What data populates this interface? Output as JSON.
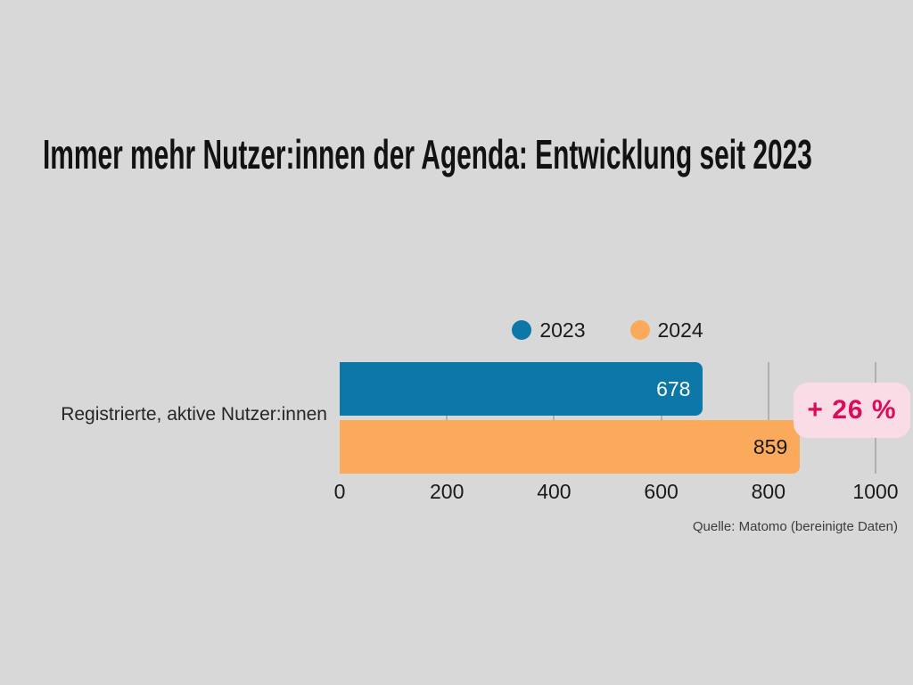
{
  "canvas": {
    "background": "#d8d8d8"
  },
  "title": "Immer mehr Nutzer:innen der Agenda: Entwicklung seit 2023",
  "source": "Quelle: Matomo (bereinigte Daten)",
  "chart_data": {
    "type": "bar",
    "orientation": "horizontal",
    "title": "Immer mehr Nutzer:innen der Agenda: Entwicklung seit 2023",
    "categories": [
      "Registrierte, aktive Nutzer:innen"
    ],
    "series": [
      {
        "name": "2023",
        "values": [
          678
        ],
        "color": "#0d78a8",
        "label_color": "#ffffff"
      },
      {
        "name": "2024",
        "values": [
          859
        ],
        "color": "#fbaa5c",
        "label_color": "#1a1a1a"
      }
    ],
    "xlim": [
      0,
      1000
    ],
    "x_ticks": [
      0,
      200,
      400,
      600,
      800,
      1000
    ],
    "grid": "vertical",
    "gridline_color": "#b0b0b0",
    "legend_position": "top-center",
    "annotation": {
      "label": "+ 26 %",
      "text_color": "#d90d5b",
      "background": "#fadce6"
    },
    "source": "Quelle: Matomo (bereinigte Daten)"
  }
}
